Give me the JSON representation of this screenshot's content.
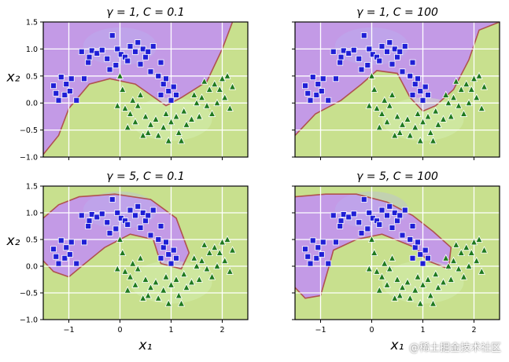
{
  "figure": {
    "xlabel": "x₁",
    "ylabel": "x₂",
    "watermark": "@稀土掘金技术社区"
  },
  "colors": {
    "class0_region": "#c39ae6",
    "class1_region": "#c8e08e",
    "class0_marker": "#1f1fd6",
    "class1_marker": "#1f7a1f",
    "boundary": "#b0524f"
  },
  "chart_data": [
    {
      "type": "scatter",
      "title": "γ = 1, C = 0.1",
      "gamma": 1,
      "C": 0.1,
      "xlim": [
        -1.5,
        2.5
      ],
      "ylim": [
        -1.0,
        1.5
      ],
      "xticks": [
        "−1",
        "0",
        "1",
        "2"
      ],
      "yticks": [
        "−1.0",
        "−0.5",
        "0.0",
        "0.5",
        "1.0",
        "1.5"
      ],
      "show_yticklabels": true,
      "show_xticklabels": false,
      "show_ylabel": true,
      "show_xlabel": false,
      "boundary": [
        [
          -1.5,
          -0.95
        ],
        [
          -1.2,
          -0.6
        ],
        [
          -1.0,
          -0.1
        ],
        [
          -0.6,
          0.35
        ],
        [
          -0.2,
          0.45
        ],
        [
          0.3,
          0.35
        ],
        [
          0.6,
          0.15
        ],
        [
          0.9,
          -0.05
        ],
        [
          1.2,
          0.1
        ],
        [
          1.7,
          0.4
        ],
        [
          2.0,
          1.0
        ],
        [
          2.2,
          1.5
        ]
      ]
    },
    {
      "type": "scatter",
      "title": "γ = 1, C = 100",
      "gamma": 1,
      "C": 100,
      "xlim": [
        -1.5,
        2.5
      ],
      "ylim": [
        -1.0,
        1.5
      ],
      "xticks": [
        "−1",
        "0",
        "1",
        "2"
      ],
      "yticks": [
        "−1.0",
        "−0.5",
        "0.0",
        "0.5",
        "1.0",
        "1.5"
      ],
      "show_yticklabels": false,
      "show_xticklabels": false,
      "show_ylabel": false,
      "show_xlabel": false,
      "boundary": [
        [
          -1.5,
          -0.6
        ],
        [
          -1.1,
          -0.2
        ],
        [
          -0.6,
          0.05
        ],
        [
          -0.2,
          0.35
        ],
        [
          0.1,
          0.6
        ],
        [
          0.5,
          0.55
        ],
        [
          0.75,
          0.1
        ],
        [
          1.0,
          -0.15
        ],
        [
          1.25,
          -0.05
        ],
        [
          1.6,
          0.25
        ],
        [
          1.9,
          0.8
        ],
        [
          2.1,
          1.35
        ],
        [
          2.5,
          1.5
        ]
      ]
    },
    {
      "type": "scatter",
      "title": "γ = 5, C = 0.1",
      "gamma": 5,
      "C": 0.1,
      "xlim": [
        -1.5,
        2.5
      ],
      "ylim": [
        -1.0,
        1.5
      ],
      "xticks": [
        "−1",
        "0",
        "1",
        "2"
      ],
      "yticks": [
        "−1.0",
        "−0.5",
        "0.0",
        "0.5",
        "1.0",
        "1.5"
      ],
      "show_yticklabels": true,
      "show_xticklabels": true,
      "show_ylabel": true,
      "show_xlabel": true,
      "boundary": [
        [
          -1.5,
          0.9
        ],
        [
          -1.2,
          1.15
        ],
        [
          -0.8,
          1.3
        ],
        [
          -0.1,
          1.35
        ],
        [
          0.6,
          1.25
        ],
        [
          1.1,
          0.9
        ],
        [
          1.35,
          0.25
        ],
        [
          1.2,
          -0.05
        ],
        [
          0.8,
          0.05
        ],
        [
          0.65,
          0.5
        ],
        [
          0.2,
          0.6
        ],
        [
          -0.3,
          0.35
        ],
        [
          -0.75,
          0.0
        ],
        [
          -1.0,
          -0.2
        ],
        [
          -1.3,
          -0.1
        ],
        [
          -1.5,
          0.1
        ]
      ]
    },
    {
      "type": "scatter",
      "title": "γ = 5, C = 100",
      "gamma": 5,
      "C": 100,
      "xlim": [
        -1.5,
        2.5
      ],
      "ylim": [
        -1.0,
        1.5
      ],
      "xticks": [
        "−1",
        "0",
        "1",
        "2"
      ],
      "yticks": [
        "−1.0",
        "−0.5",
        "0.0",
        "0.5",
        "1.0",
        "1.5"
      ],
      "show_yticklabels": false,
      "show_xticklabels": true,
      "show_ylabel": false,
      "show_xlabel": true,
      "boundary": [
        [
          -1.5,
          1.3
        ],
        [
          -0.9,
          1.35
        ],
        [
          -0.3,
          1.35
        ],
        [
          0.3,
          1.2
        ],
        [
          0.8,
          0.95
        ],
        [
          1.2,
          0.65
        ],
        [
          1.55,
          0.35
        ],
        [
          1.5,
          -0.05
        ],
        [
          1.1,
          0.1
        ],
        [
          0.85,
          0.35
        ],
        [
          0.2,
          0.6
        ],
        [
          -0.3,
          0.5
        ],
        [
          -0.75,
          0.3
        ],
        [
          -0.85,
          -0.05
        ],
        [
          -1.0,
          -0.55
        ],
        [
          -1.3,
          -0.6
        ],
        [
          -1.5,
          -0.4
        ]
      ]
    }
  ],
  "points": {
    "class0": [
      [
        -1.15,
        0.48
      ],
      [
        -1.05,
        0.35
      ],
      [
        -1.25,
        0.18
      ],
      [
        -1.08,
        0.15
      ],
      [
        -0.98,
        0.22
      ],
      [
        -1.2,
        0.05
      ],
      [
        -1.3,
        0.32
      ],
      [
        -0.85,
        0.05
      ],
      [
        -0.95,
        0.45
      ],
      [
        -0.75,
        0.95
      ],
      [
        -0.6,
        0.85
      ],
      [
        -0.55,
        0.97
      ],
      [
        -0.45,
        0.92
      ],
      [
        -0.35,
        0.98
      ],
      [
        -0.25,
        0.82
      ],
      [
        -0.15,
        1.25
      ],
      [
        -0.05,
        1.0
      ],
      [
        0.02,
        0.9
      ],
      [
        0.1,
        0.85
      ],
      [
        0.2,
        1.05
      ],
      [
        0.3,
        0.95
      ],
      [
        0.35,
        1.12
      ],
      [
        0.45,
        1.0
      ],
      [
        0.5,
        0.85
      ],
      [
        0.55,
        0.95
      ],
      [
        0.65,
        1.05
      ],
      [
        0.4,
        0.72
      ],
      [
        0.6,
        0.58
      ],
      [
        0.75,
        0.5
      ],
      [
        0.8,
        0.75
      ],
      [
        0.85,
        0.35
      ],
      [
        0.9,
        0.45
      ],
      [
        0.95,
        0.22
      ],
      [
        1.05,
        0.3
      ],
      [
        1.1,
        0.15
      ],
      [
        0.8,
        0.15
      ],
      [
        1.0,
        0.05
      ],
      [
        -0.2,
        0.62
      ],
      [
        -0.62,
        0.75
      ],
      [
        -0.7,
        0.45
      ],
      [
        0.15,
        0.78
      ],
      [
        -0.08,
        0.7
      ]
    ],
    "class1": [
      [
        0.0,
        0.5
      ],
      [
        0.05,
        0.25
      ],
      [
        -0.05,
        -0.05
      ],
      [
        0.1,
        -0.1
      ],
      [
        0.2,
        -0.2
      ],
      [
        0.3,
        -0.35
      ],
      [
        0.15,
        -0.45
      ],
      [
        0.35,
        -0.05
      ],
      [
        0.4,
        0.15
      ],
      [
        0.5,
        -0.25
      ],
      [
        0.6,
        -0.4
      ],
      [
        0.7,
        -0.3
      ],
      [
        0.75,
        -0.6
      ],
      [
        0.85,
        -0.45
      ],
      [
        0.9,
        -0.2
      ],
      [
        1.0,
        -0.35
      ],
      [
        1.1,
        -0.25
      ],
      [
        1.15,
        -0.55
      ],
      [
        1.25,
        -0.15
      ],
      [
        1.3,
        -0.4
      ],
      [
        1.4,
        -0.3
      ],
      [
        1.5,
        0.0
      ],
      [
        1.55,
        -0.25
      ],
      [
        1.6,
        0.1
      ],
      [
        1.7,
        -0.05
      ],
      [
        1.75,
        0.25
      ],
      [
        1.8,
        -0.2
      ],
      [
        1.85,
        0.35
      ],
      [
        1.95,
        0.25
      ],
      [
        2.0,
        0.45
      ],
      [
        2.05,
        0.1
      ],
      [
        2.15,
        -0.1
      ],
      [
        2.2,
        0.3
      ],
      [
        1.9,
        0.0
      ],
      [
        1.65,
        0.4
      ],
      [
        1.45,
        0.15
      ],
      [
        0.55,
        -0.55
      ],
      [
        0.25,
        0.05
      ],
      [
        0.95,
        -0.7
      ],
      [
        1.2,
        -0.7
      ],
      [
        0.45,
        -0.6
      ],
      [
        2.1,
        0.5
      ]
    ]
  }
}
